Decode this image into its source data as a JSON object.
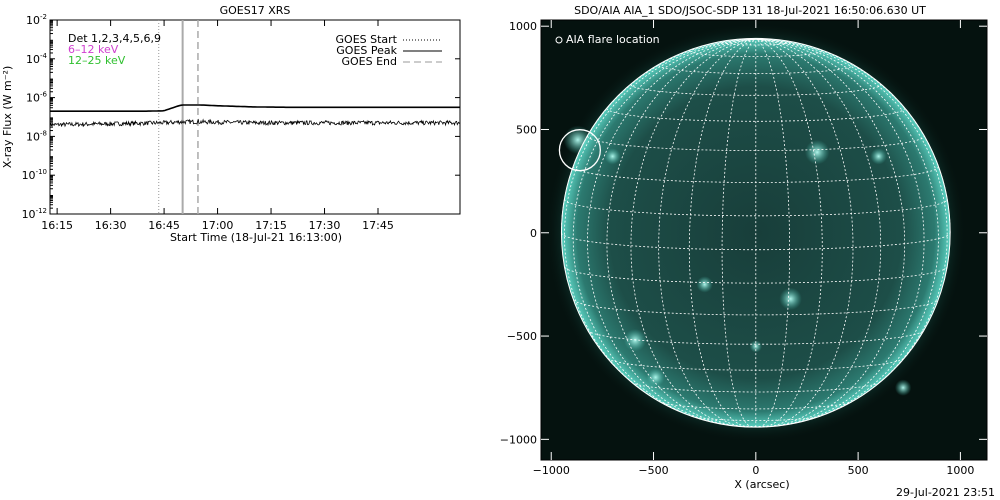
{
  "chart_data": [
    {
      "type": "line",
      "title": "GOES17 XRS",
      "xlabel": "Start Time (18-Jul-21 16:13:00)",
      "ylabel": "X-ray Flux (W m⁻²)",
      "y_scale": "log",
      "ylim_exp": [
        -12,
        -2
      ],
      "y_ticks": [
        {
          "base": "10",
          "exp": "-2",
          "value_exp": -2
        },
        {
          "base": "10",
          "exp": "-4",
          "value_exp": -4
        },
        {
          "base": "10",
          "exp": "-6",
          "value_exp": -6
        },
        {
          "base": "10",
          "exp": "-8",
          "value_exp": -8
        },
        {
          "base": "10",
          "exp": "-10",
          "value_exp": -10
        },
        {
          "base": "10",
          "exp": "-12",
          "value_exp": -12
        }
      ],
      "x_ticks": [
        "16:15",
        "16:30",
        "16:45",
        "17:00",
        "17:15",
        "17:30",
        "17:45"
      ],
      "x_tick_minutes": [
        15,
        30,
        45,
        60,
        75,
        90,
        105
      ],
      "xlim_minutes": [
        13,
        128
      ],
      "legend_left": [
        {
          "label": "Det 1,2,3,4,5,6,9",
          "color": "#000000"
        },
        {
          "label": "6–12 keV",
          "color": "#d040d0"
        },
        {
          "label": "12–25 keV",
          "color": "#30c030"
        }
      ],
      "legend_right": [
        {
          "label": "GOES Start",
          "style": "dotted"
        },
        {
          "label": "GOES Peak",
          "style": "solid"
        },
        {
          "label": "GOES End",
          "style": "dashed"
        }
      ],
      "markers_minutes": {
        "start": 43.5,
        "peak": 50.2,
        "end": 54.5
      },
      "series": [
        {
          "color": "#000000",
          "x_minutes": [
            13,
            20,
            30,
            40,
            45,
            47,
            49,
            50,
            52,
            55,
            60,
            70,
            80,
            90,
            100,
            110,
            120,
            128
          ],
          "log_flux": [
            -6.7,
            -6.7,
            -6.7,
            -6.7,
            -6.68,
            -6.55,
            -6.43,
            -6.38,
            -6.38,
            -6.38,
            -6.42,
            -6.48,
            -6.5,
            -6.5,
            -6.5,
            -6.5,
            -6.5,
            -6.5
          ]
        },
        {
          "color": "#000000",
          "x_minutes": [
            13,
            30,
            45,
            50,
            55,
            70,
            90,
            110,
            128
          ],
          "log_flux": [
            -7.4,
            -7.35,
            -7.3,
            -7.25,
            -7.25,
            -7.3,
            -7.3,
            -7.3,
            -7.3
          ]
        }
      ]
    },
    {
      "type": "heatmap",
      "title": "SDO/AIA AIA_1 SDO/JSOC-SDP 131 18-Jul-2021 16:50:06.630 UT",
      "xlabel": "X (arcsec)",
      "x_ticks": [
        "−1000",
        "−500",
        "0",
        "500",
        "1000"
      ],
      "y_ticks": [
        "1000",
        "500",
        "0",
        "−500",
        "−1000"
      ],
      "tick_values": [
        -1000,
        -500,
        0,
        500,
        1000
      ],
      "xlim": [
        -1050,
        1130
      ],
      "ylim": [
        -1100,
        1030
      ],
      "legend": "AIA flare location",
      "flare_location": [
        -860,
        400
      ],
      "solar_radius_arcsec": 950,
      "colors": {
        "background": "#05120f",
        "disk": "#1a4a44",
        "limb": "#3fb8a8",
        "grid": "#ffffff"
      }
    }
  ],
  "footer_timestamp": "29-Jul-2021 23:51"
}
